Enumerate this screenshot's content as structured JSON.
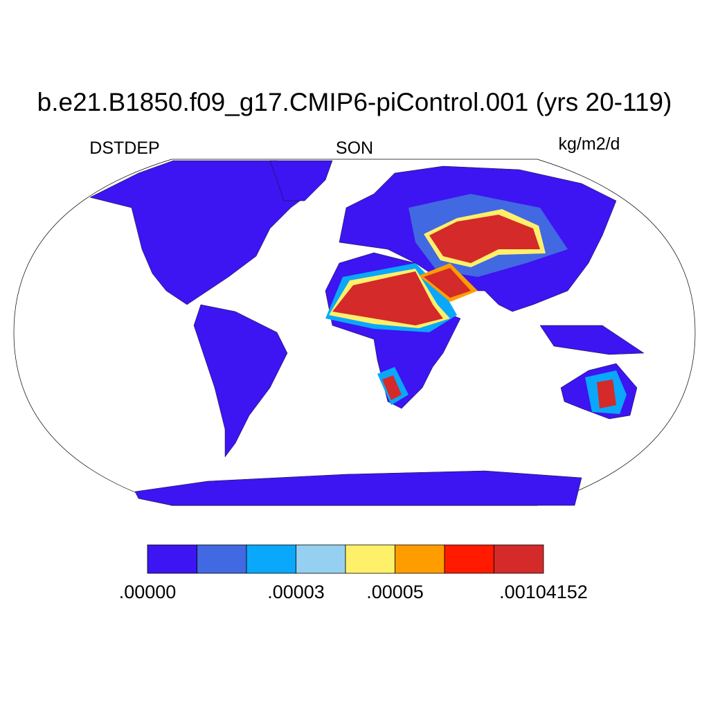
{
  "map": {
    "title": "b.e21.B1850.f09_g17.CMIP6-piControl.001 (yrs 20-119)",
    "left_label": "DSTDEP",
    "center_label": "SON",
    "units": "kg/m2/d",
    "colorbar": {
      "colors": [
        "#3d14f2",
        "#4169e1",
        "#0aa8fa",
        "#96d0f0",
        "#fff06a",
        "#ff9d00",
        "#ff1a00",
        "#d42a2a"
      ],
      "levels": [
        ".00000",
        null,
        null,
        ".00003",
        null,
        ".00005",
        null,
        null,
        ".00104152"
      ]
    }
  }
}
